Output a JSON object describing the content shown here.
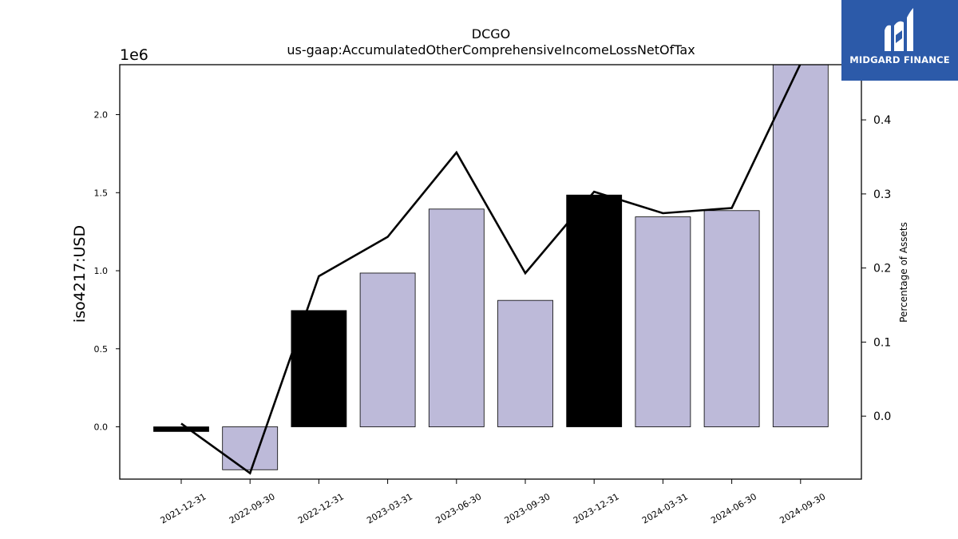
{
  "brand": {
    "name": "MIDGARD FINANCE",
    "color": "#2c5aa9"
  },
  "chart_data": {
    "type": "bar",
    "title": "DCGO",
    "subtitle": "us-gaap:AccumulatedOtherComprehensiveIncomeLossNetOfTax",
    "ylabel": "iso4217:USD",
    "y_offset_label": "1e6",
    "y2label": "Percentage of Assets",
    "categories": [
      "2021-12-31",
      "2022-09-30",
      "2022-12-31",
      "2023-03-31",
      "2023-06-30",
      "2023-09-30",
      "2023-12-31",
      "2024-03-31",
      "2024-06-30",
      "2024-09-30"
    ],
    "series": [
      {
        "axis": "left",
        "type": "bar",
        "values": [
          -30000,
          -275000,
          745000,
          985000,
          1395000,
          810000,
          1485000,
          1345000,
          1385000,
          2320000
        ],
        "colors": [
          "#000000",
          "#bdbad9",
          "#000000",
          "#bdbad9",
          "#bdbad9",
          "#bdbad9",
          "#000000",
          "#bdbad9",
          "#bdbad9",
          "#bdbad9"
        ]
      },
      {
        "axis": "right",
        "type": "line",
        "color": "#000000",
        "values": [
          -0.01,
          -0.077,
          0.189,
          0.242,
          0.356,
          0.193,
          0.303,
          0.274,
          0.281,
          0.476
        ]
      }
    ],
    "ylim": [
      -335000,
      2320000
    ],
    "yticks": [
      0,
      500000,
      1000000,
      1500000,
      2000000
    ],
    "ytick_labels": [
      "0.0",
      "0.5",
      "1.0",
      "1.5",
      "2.0"
    ],
    "y2lim": [
      -0.085,
      0.4745
    ],
    "y2ticks": [
      0,
      0.1,
      0.2,
      0.3,
      0.4
    ],
    "y2tick_labels": [
      "0.0",
      "0.1",
      "0.2",
      "0.3",
      "0.4"
    ],
    "grid": false,
    "legend": "none"
  }
}
